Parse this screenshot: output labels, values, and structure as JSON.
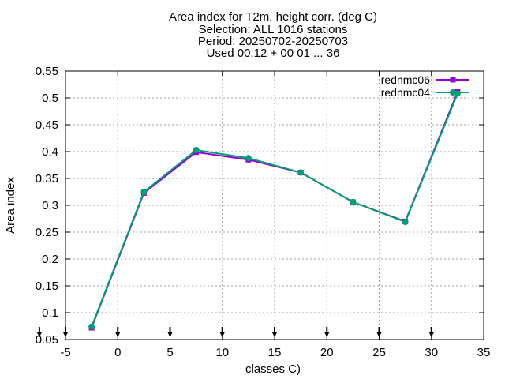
{
  "chart_data": {
    "type": "line",
    "title_lines": [
      "Area index  for T2m, height corr. (deg C)",
      "Selection: ALL   1016 stations",
      "Period: 20250702-20250703",
      "Used 00,12 + 00 01 ... 36"
    ],
    "xlabel": "classes C)",
    "ylabel": "Area index",
    "xlim": [
      -5,
      35
    ],
    "ylim": [
      0.05,
      0.55
    ],
    "xticks": [
      -5,
      0,
      5,
      10,
      15,
      20,
      25,
      30,
      35
    ],
    "yticks": [
      0.05,
      0.1,
      0.15,
      0.2,
      0.25,
      0.3,
      0.35,
      0.4,
      0.45,
      0.5,
      0.55
    ],
    "xtick_labels": [
      "-5",
      "0",
      "5",
      "10",
      "15",
      "20",
      "25",
      "30",
      "35"
    ],
    "ytick_labels": [
      "0.05",
      "0.1",
      "0.15",
      "0.2",
      "0.25",
      "0.3",
      "0.35",
      "0.4",
      "0.45",
      "0.5",
      "0.55"
    ],
    "grid": true,
    "legend_position": "top-right",
    "x": [
      -2.5,
      2.5,
      7.5,
      12.5,
      17.5,
      22.5,
      27.5,
      32.5
    ],
    "series": [
      {
        "name": "rednmc06",
        "color": "#9400d3",
        "marker": "square",
        "values": [
          0.072,
          0.323,
          0.399,
          0.385,
          0.361,
          0.306,
          0.27,
          0.511
        ]
      },
      {
        "name": "rednmc04",
        "color": "#009e73",
        "marker": "circle",
        "values": [
          0.074,
          0.325,
          0.403,
          0.388,
          0.361,
          0.306,
          0.269,
          0.508
        ]
      }
    ],
    "bottom_markers_x": [
      -7.5,
      -5,
      0,
      5,
      10,
      15,
      20,
      25,
      30
    ]
  }
}
